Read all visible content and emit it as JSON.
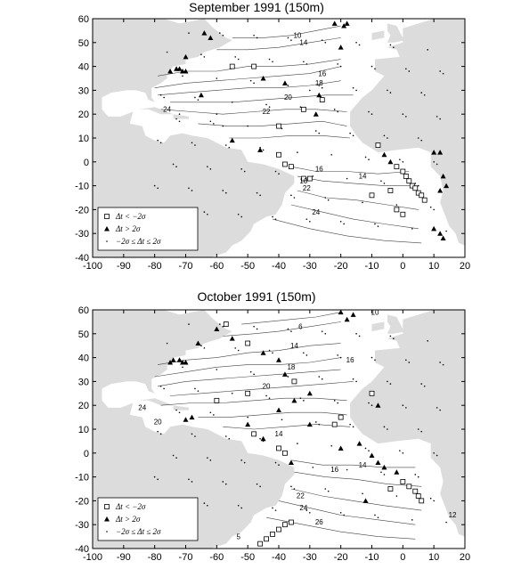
{
  "panels": [
    {
      "title": "September 1991 (150m)",
      "x_ticks": [
        "-100",
        "-90",
        "-80",
        "-70",
        "-60",
        "-50",
        "-40",
        "-30",
        "-20",
        "-10",
        "0",
        "10",
        "20"
      ],
      "y_ticks": [
        "60",
        "50",
        "40",
        "30",
        "20",
        "10",
        "0",
        "-10",
        "-20",
        "-30",
        "-40"
      ],
      "contour_labels": [
        {
          "text": "10",
          "lon": -34,
          "lat": 52
        },
        {
          "text": "14",
          "lon": -32,
          "lat": 49
        },
        {
          "text": "16",
          "lon": -26,
          "lat": 36
        },
        {
          "text": "18",
          "lon": -27,
          "lat": 32
        },
        {
          "text": "20",
          "lon": -37,
          "lat": 26
        },
        {
          "text": "22",
          "lon": -44,
          "lat": 20
        },
        {
          "text": "24",
          "lon": -76,
          "lat": 21
        },
        {
          "text": "16",
          "lon": -27,
          "lat": -4
        },
        {
          "text": "14",
          "lon": -13,
          "lat": -7
        },
        {
          "text": "10",
          "lon": -32,
          "lat": -9
        },
        {
          "text": "22",
          "lon": -31,
          "lat": -12
        },
        {
          "text": "24",
          "lon": -28,
          "lat": -22
        }
      ],
      "legend": {
        "items": [
          {
            "symbol": "open-square",
            "label": "Δt < −2σ"
          },
          {
            "symbol": "filled-triangle",
            "label": "Δt > 2σ"
          },
          {
            "symbol": "dot",
            "label": "−2σ ≤ Δt ≤ 2σ"
          }
        ]
      }
    },
    {
      "title": "October 1991 (150m)",
      "x_ticks": [
        "-100",
        "-90",
        "-80",
        "-70",
        "-60",
        "-50",
        "-40",
        "-30",
        "-20",
        "-10",
        "0",
        "10",
        "20"
      ],
      "y_ticks": [
        "60",
        "50",
        "40",
        "30",
        "20",
        "10",
        "0",
        "-10",
        "-20",
        "-30",
        "-40"
      ],
      "contour_labels": [
        {
          "text": "10",
          "lon": -9,
          "lat": 58
        },
        {
          "text": "6",
          "lon": -33,
          "lat": 52
        },
        {
          "text": "14",
          "lon": -35,
          "lat": 44
        },
        {
          "text": "16",
          "lon": -17,
          "lat": 38
        },
        {
          "text": "18",
          "lon": -36,
          "lat": 35
        },
        {
          "text": "20",
          "lon": -44,
          "lat": 27
        },
        {
          "text": "24",
          "lon": -84,
          "lat": 18
        },
        {
          "text": "20",
          "lon": -79,
          "lat": 12
        },
        {
          "text": "14",
          "lon": -40,
          "lat": 7
        },
        {
          "text": "16",
          "lon": -22,
          "lat": -8
        },
        {
          "text": "14",
          "lon": -13,
          "lat": -6
        },
        {
          "text": "22",
          "lon": -33,
          "lat": -19
        },
        {
          "text": "24",
          "lon": -32,
          "lat": -24
        },
        {
          "text": "26",
          "lon": -27,
          "lat": -30
        },
        {
          "text": "12",
          "lon": 16,
          "lat": -27
        },
        {
          "text": "5",
          "lon": -53,
          "lat": -36
        }
      ],
      "legend": {
        "items": [
          {
            "symbol": "open-square",
            "label": "Δt < −2σ"
          },
          {
            "symbol": "filled-triangle",
            "label": "Δt > 2σ"
          },
          {
            "symbol": "dot",
            "label": "−2σ ≤ Δt ≤ 2σ"
          }
        ]
      }
    }
  ],
  "colors": {
    "land": "#dcdcdc",
    "frame": "#000000",
    "contour": "#444444",
    "marker": "#000000"
  }
}
